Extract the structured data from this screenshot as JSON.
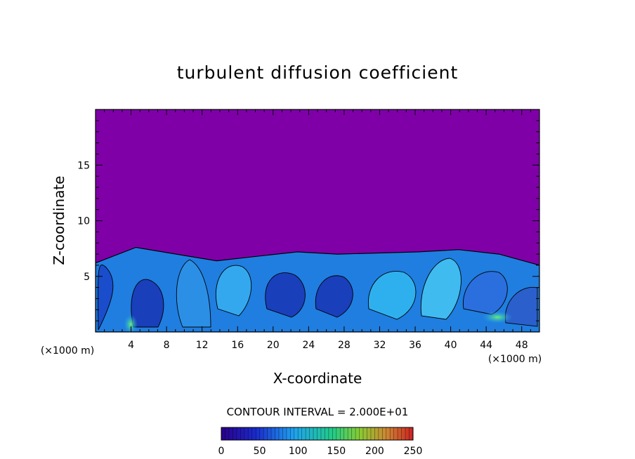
{
  "chart_data": {
    "type": "heatmap",
    "title": "turbulent diffusion coefficient",
    "xlabel": "X-coordinate",
    "ylabel": "Z-coordinate",
    "x_unit": "(×1000 m)",
    "y_unit": "(×1000 m)",
    "xlim": [
      0,
      50
    ],
    "ylim": [
      0,
      20
    ],
    "x_ticks": [
      4,
      8,
      12,
      16,
      20,
      24,
      28,
      32,
      36,
      40,
      44,
      48
    ],
    "y_ticks": [
      5,
      10,
      15
    ],
    "contour_interval_label": "CONTOUR INTERVAL = 2.000E+01",
    "contour_interval": 20,
    "colorbar": {
      "min": 0,
      "max": 250,
      "ticks": [
        0,
        50,
        100,
        150,
        200,
        250
      ],
      "colors": [
        "#2a0088",
        "#1a2acc",
        "#1fa2ee",
        "#22cc88",
        "#88cc33",
        "#cc8833",
        "#cc2222"
      ]
    },
    "background_value": 0,
    "background_color": "#8000a8",
    "boundary_layer_top_z": [
      6.2,
      7.6,
      7.0,
      6.4,
      6.8,
      7.2,
      7.0,
      7.1,
      7.2,
      7.4,
      7.0,
      6.0
    ]
  }
}
